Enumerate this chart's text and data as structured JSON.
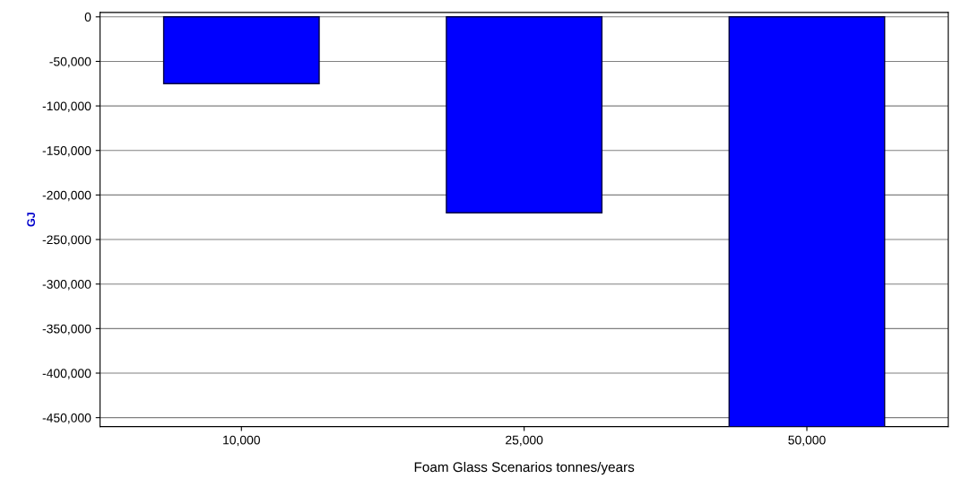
{
  "chart_data": {
    "type": "bar",
    "xlabel": "Foam Glass Scenarios tonnes/years",
    "ylabel": "GJ",
    "categories": [
      "10,000",
      "25,000",
      "50,000"
    ],
    "values": [
      -75000,
      -220000,
      -460000
    ],
    "color": "#0000ff",
    "ylim": [
      -460000,
      5000
    ],
    "yticks": [
      0,
      {
        "value": -50000,
        "label": "-50,000"
      },
      {
        "value": -100000,
        "label": "-100,000"
      },
      {
        "value": -150000,
        "label": "-150,000"
      },
      {
        "value": -200000,
        "label": "-200,000"
      },
      {
        "value": -250000,
        "label": "-250,000"
      },
      {
        "value": -300000,
        "label": "-300,000"
      },
      {
        "value": -350000,
        "label": "-350,000"
      },
      {
        "value": -400000,
        "label": "-400,000"
      },
      {
        "value": -450000,
        "label": "-450,000"
      }
    ],
    "grid": "y"
  }
}
